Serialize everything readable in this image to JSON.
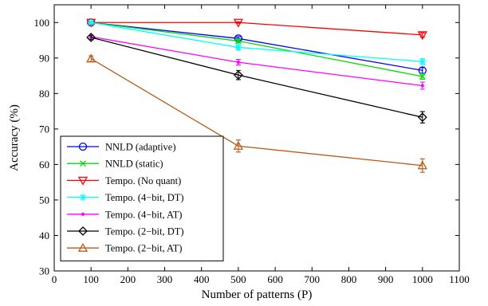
{
  "chart_data": {
    "type": "line",
    "xlabel": "Number of patterns (P)",
    "ylabel": "Accuracy (%)",
    "xlim": [
      0,
      1100
    ],
    "ylim": [
      30,
      105
    ],
    "x_ticks": [
      0,
      100,
      200,
      300,
      400,
      500,
      600,
      700,
      800,
      900,
      1000,
      1100
    ],
    "y_ticks": [
      30,
      40,
      50,
      60,
      70,
      80,
      90,
      100
    ],
    "grid": false,
    "legend_position": "bottom-left",
    "x": [
      100,
      500,
      1000
    ],
    "series": [
      {
        "name": "NNLD (adaptive)",
        "values": [
          100,
          95.5,
          86.5
        ],
        "errors": [
          0.3,
          0.5,
          0.8
        ],
        "color": "#0000ff",
        "marker": "circle"
      },
      {
        "name": "NNLD (static)",
        "values": [
          100,
          94.8,
          84.8
        ],
        "errors": [
          0.3,
          0.6,
          0.8
        ],
        "color": "#00dd00",
        "marker": "x"
      },
      {
        "name": "Tempo. (No quant)",
        "values": [
          100,
          100,
          96.5
        ],
        "errors": [
          0.2,
          0.2,
          0.6
        ],
        "color": "#ff0000",
        "marker": "triangle-down"
      },
      {
        "name": "Tempo. (4−bit, DT)",
        "values": [
          100,
          93,
          89
        ],
        "errors": [
          0.3,
          0.7,
          0.8
        ],
        "color": "#00ffff",
        "marker": "star"
      },
      {
        "name": "Tempo. (4−bit, AT)",
        "values": [
          96,
          88.8,
          82.2
        ],
        "errors": [
          0.4,
          0.8,
          1.0
        ],
        "color": "#ff00ff",
        "marker": "dot"
      },
      {
        "name": "Tempo. (2−bit, DT)",
        "values": [
          95.8,
          85.2,
          73.3
        ],
        "errors": [
          0.6,
          1.3,
          1.6
        ],
        "color": "#000000",
        "marker": "diamond"
      },
      {
        "name": "Tempo. (2−bit, AT)",
        "values": [
          89.8,
          65.2,
          59.7
        ],
        "errors": [
          0.8,
          1.7,
          1.9
        ],
        "color": "#b85a1a",
        "marker": "triangle-up"
      }
    ]
  }
}
